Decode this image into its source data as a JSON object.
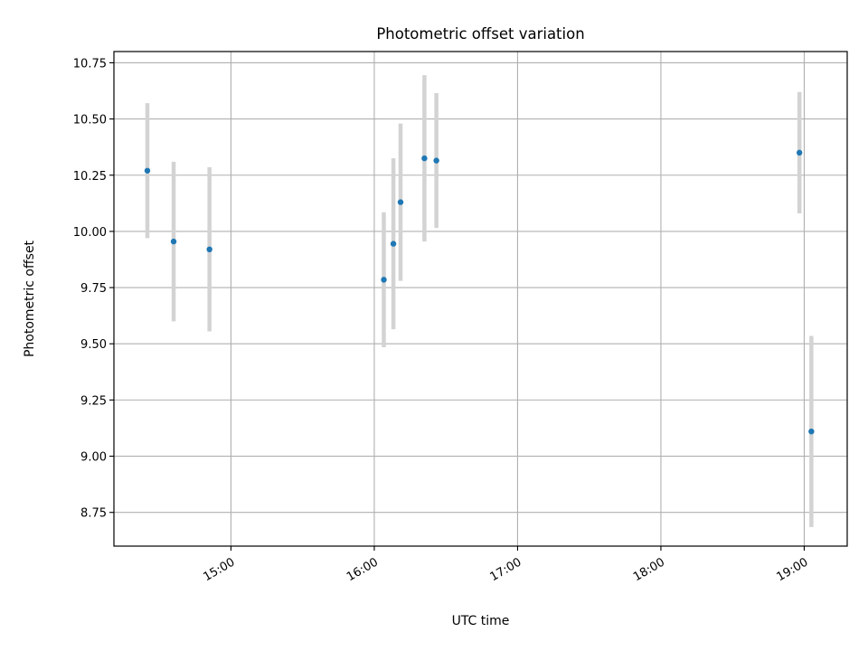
{
  "chart_data": {
    "type": "scatter",
    "title": "Photometric offset variation",
    "xlabel": "UTC time",
    "ylabel": "Photometric offset",
    "x_axis_type": "time",
    "xlim": [
      "14:11",
      "19:18"
    ],
    "ylim": [
      8.6,
      10.8
    ],
    "yticks": [
      8.75,
      9.0,
      9.25,
      9.5,
      9.75,
      10.0,
      10.25,
      10.5,
      10.75
    ],
    "ytick_labels": [
      "8.75",
      "9.00",
      "9.25",
      "9.50",
      "9.75",
      "10.00",
      "10.25",
      "10.50",
      "10.75"
    ],
    "xticks": [
      "15:00",
      "16:00",
      "17:00",
      "18:00",
      "19:00"
    ],
    "xtick_labels": [
      "15:00",
      "16:00",
      "17:00",
      "18:00",
      "19:00"
    ],
    "grid": true,
    "colors": {
      "points": "#1f77b4",
      "error_bars": "#d3d3d3",
      "grid": "#b0b0b0"
    },
    "points": [
      {
        "x": "14:25",
        "y": 10.27,
        "err": 0.3
      },
      {
        "x": "14:36",
        "y": 9.955,
        "err": 0.355
      },
      {
        "x": "14:51",
        "y": 9.92,
        "err": 0.365
      },
      {
        "x": "16:04",
        "y": 9.785,
        "err": 0.3
      },
      {
        "x": "16:08",
        "y": 9.945,
        "err": 0.38
      },
      {
        "x": "16:11",
        "y": 10.13,
        "err": 0.35
      },
      {
        "x": "16:21",
        "y": 10.325,
        "err": 0.37
      },
      {
        "x": "16:26",
        "y": 10.315,
        "err": 0.3
      },
      {
        "x": "18:58",
        "y": 10.35,
        "err": 0.27
      },
      {
        "x": "19:03",
        "y": 9.11,
        "err": 0.425
      }
    ]
  }
}
